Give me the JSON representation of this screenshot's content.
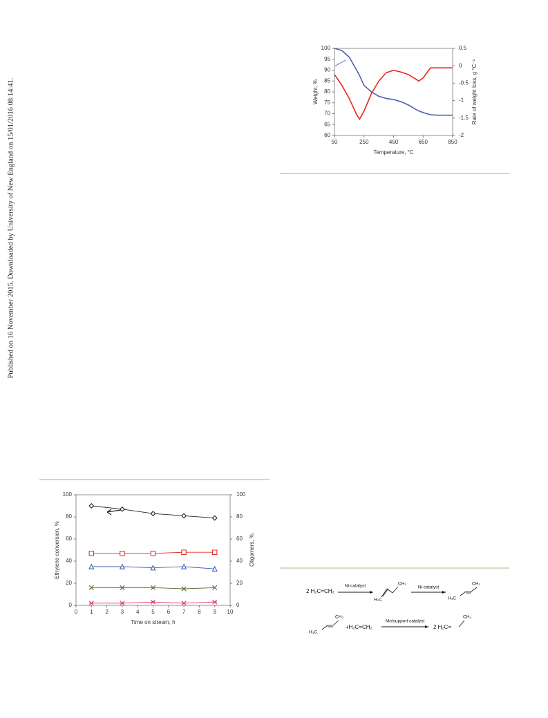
{
  "side_note": "Published on 16 November 2015. Downloaded by University of New England on 15/01/2016 08:14:41.",
  "chart_data": [
    {
      "type": "line",
      "xlabel": "Temperature, °C",
      "ylabel": "Weight, %",
      "y2label": "Rate of weight loss, g °C⁻¹",
      "x": [
        50,
        100,
        150,
        200,
        220,
        250,
        300,
        350,
        400,
        450,
        500,
        550,
        600,
        620,
        650,
        700,
        750,
        800,
        850
      ],
      "xlim": [
        50,
        850
      ],
      "xticks": [
        50,
        250,
        450,
        650,
        850
      ],
      "ylim": [
        60,
        100
      ],
      "yticks": [
        60,
        65,
        70,
        75,
        80,
        85,
        90,
        95,
        100
      ],
      "y2lim": [
        -2,
        0.5
      ],
      "y2ticks": [
        -2,
        -1.5,
        -1,
        -0.5,
        0,
        0.5
      ],
      "series": [
        {
          "color": "#4a5fb0",
          "values": [
            100,
            99,
            96,
            90,
            87.5,
            83,
            80,
            78,
            77,
            76.5,
            75.5,
            74,
            72,
            71.3,
            70.5,
            69.5,
            69.3,
            69.3,
            69.3
          ]
        },
        {
          "color": "#e8251f",
          "axis": "y2",
          "values": [
            -0.25,
            -0.56,
            -0.94,
            -1.4,
            -1.53,
            -1.3,
            -0.8,
            -0.44,
            -0.2,
            -0.13,
            -0.18,
            -0.25,
            -0.38,
            -0.44,
            -0.35,
            -0.06,
            -0.06,
            -0.06,
            -0.06
          ]
        }
      ]
    },
    {
      "type": "line",
      "xlabel": "Time on stream, h",
      "ylabel": "Ethylene conversion, %",
      "y2label": "Oligomers, %",
      "x": [
        1,
        3,
        5,
        7,
        9
      ],
      "xlim": [
        0,
        10
      ],
      "xticks": [
        0,
        1,
        2,
        3,
        4,
        5,
        6,
        7,
        8,
        9,
        10
      ],
      "ylim": [
        0,
        100
      ],
      "yticks": [
        0,
        20,
        40,
        60,
        80,
        100
      ],
      "y2lim": [
        0,
        100
      ],
      "y2ticks": [
        0,
        20,
        40,
        60,
        80,
        100
      ],
      "series": [
        {
          "color": "#222222",
          "marker": "diamond",
          "values": [
            90,
            87,
            83,
            81,
            79
          ]
        },
        {
          "color": "#e0302a",
          "marker": "square",
          "values": [
            47,
            47,
            47,
            48,
            48
          ]
        },
        {
          "color": "#3a5db5",
          "marker": "triangle",
          "values": [
            35,
            35,
            34,
            35,
            33
          ]
        },
        {
          "color": "#5a6b2a",
          "marker": "x",
          "values": [
            16,
            16,
            16,
            15,
            16
          ]
        },
        {
          "color": "#e0307a",
          "marker": "star",
          "values": [
            2,
            2,
            3,
            2,
            3
          ]
        }
      ]
    }
  ],
  "scheme": {
    "reactant": "2 H₂C=CH₂",
    "cat1": "Ni-catalyst",
    "b1_ch3": "CH₃",
    "b1_h2c": "H₂C",
    "cat2": "Ni-catalyst",
    "b2_ch3": "CH₃",
    "b2_h3c": "H₃C",
    "b3_ch3": "CH₃",
    "b3_h3c": "H₃C",
    "plus": "+H₂C=CH₂",
    "cat3": "Mo/support catalyst",
    "product": "2 H₂C=",
    "p_ch3": "CH₃"
  }
}
